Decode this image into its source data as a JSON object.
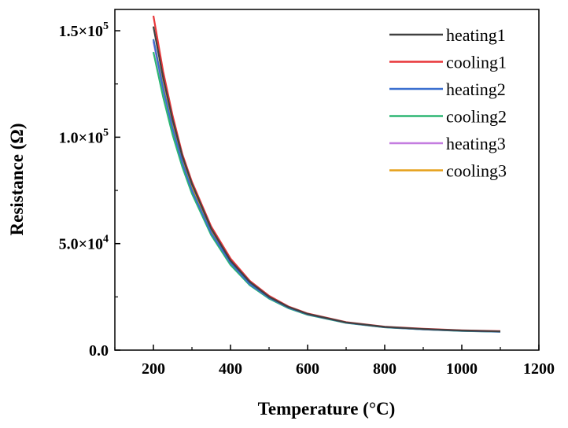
{
  "chart_data": {
    "type": "line",
    "xlabel": "Temperature (°C)",
    "ylabel": "Resistance (Ω)",
    "xlim": [
      100,
      1200
    ],
    "ylim": [
      0,
      160000
    ],
    "x_ticks": [
      200,
      400,
      600,
      800,
      1000,
      1200
    ],
    "x_tick_labels": [
      "200",
      "400",
      "600",
      "800",
      "1000",
      "1200"
    ],
    "y_ticks": [
      0,
      50000,
      100000,
      150000
    ],
    "y_tick_labels": [
      {
        "mantissa": "0.0",
        "exponent": ""
      },
      {
        "mantissa": "5.0×10",
        "exponent": "4"
      },
      {
        "mantissa": "1.0×10",
        "exponent": "5"
      },
      {
        "mantissa": "1.5×10",
        "exponent": "5"
      }
    ],
    "legend_position": "top-right",
    "x": [
      200,
      225,
      250,
      275,
      300,
      350,
      400,
      450,
      500,
      550,
      600,
      700,
      800,
      900,
      1000,
      1100
    ],
    "series": [
      {
        "name": "heating1",
        "color": "#404040",
        "values": [
          152000,
          128000,
          108000,
          91000,
          78000,
          57000,
          42000,
          32000,
          25000,
          20300,
          17000,
          13000,
          10900,
          9900,
          9200,
          8800
        ]
      },
      {
        "name": "cooling1",
        "color": "#e8373a",
        "values": [
          157000,
          131000,
          110000,
          92000,
          79000,
          58000,
          43000,
          32500,
          25500,
          20500,
          17200,
          13100,
          11000,
          10000,
          9300,
          8900
        ]
      },
      {
        "name": "heating2",
        "color": "#3a6fcf",
        "values": [
          146000,
          123000,
          104000,
          88000,
          75000,
          55000,
          41000,
          31000,
          24600,
          20000,
          16800,
          12900,
          10800,
          9800,
          9100,
          8700
        ]
      },
      {
        "name": "cooling2",
        "color": "#2db673",
        "values": [
          140000,
          119000,
          101000,
          86000,
          73500,
          54000,
          40000,
          30500,
          24200,
          19700,
          16600,
          12800,
          10700,
          9700,
          9000,
          8600
        ]
      },
      {
        "name": "heating3",
        "color": "#c47de0",
        "values": [
          145000,
          122000,
          103000,
          87500,
          74500,
          54500,
          40500,
          30800,
          24400,
          19900,
          16700,
          12850,
          10750,
          9750,
          9050,
          8650
        ]
      },
      {
        "name": "cooling3",
        "color": "#e6a019",
        "values": [
          146000,
          124000,
          105000,
          89000,
          76000,
          56000,
          41500,
          31500,
          24800,
          20100,
          16900,
          12950,
          10850,
          9850,
          9150,
          8750
        ]
      }
    ]
  }
}
